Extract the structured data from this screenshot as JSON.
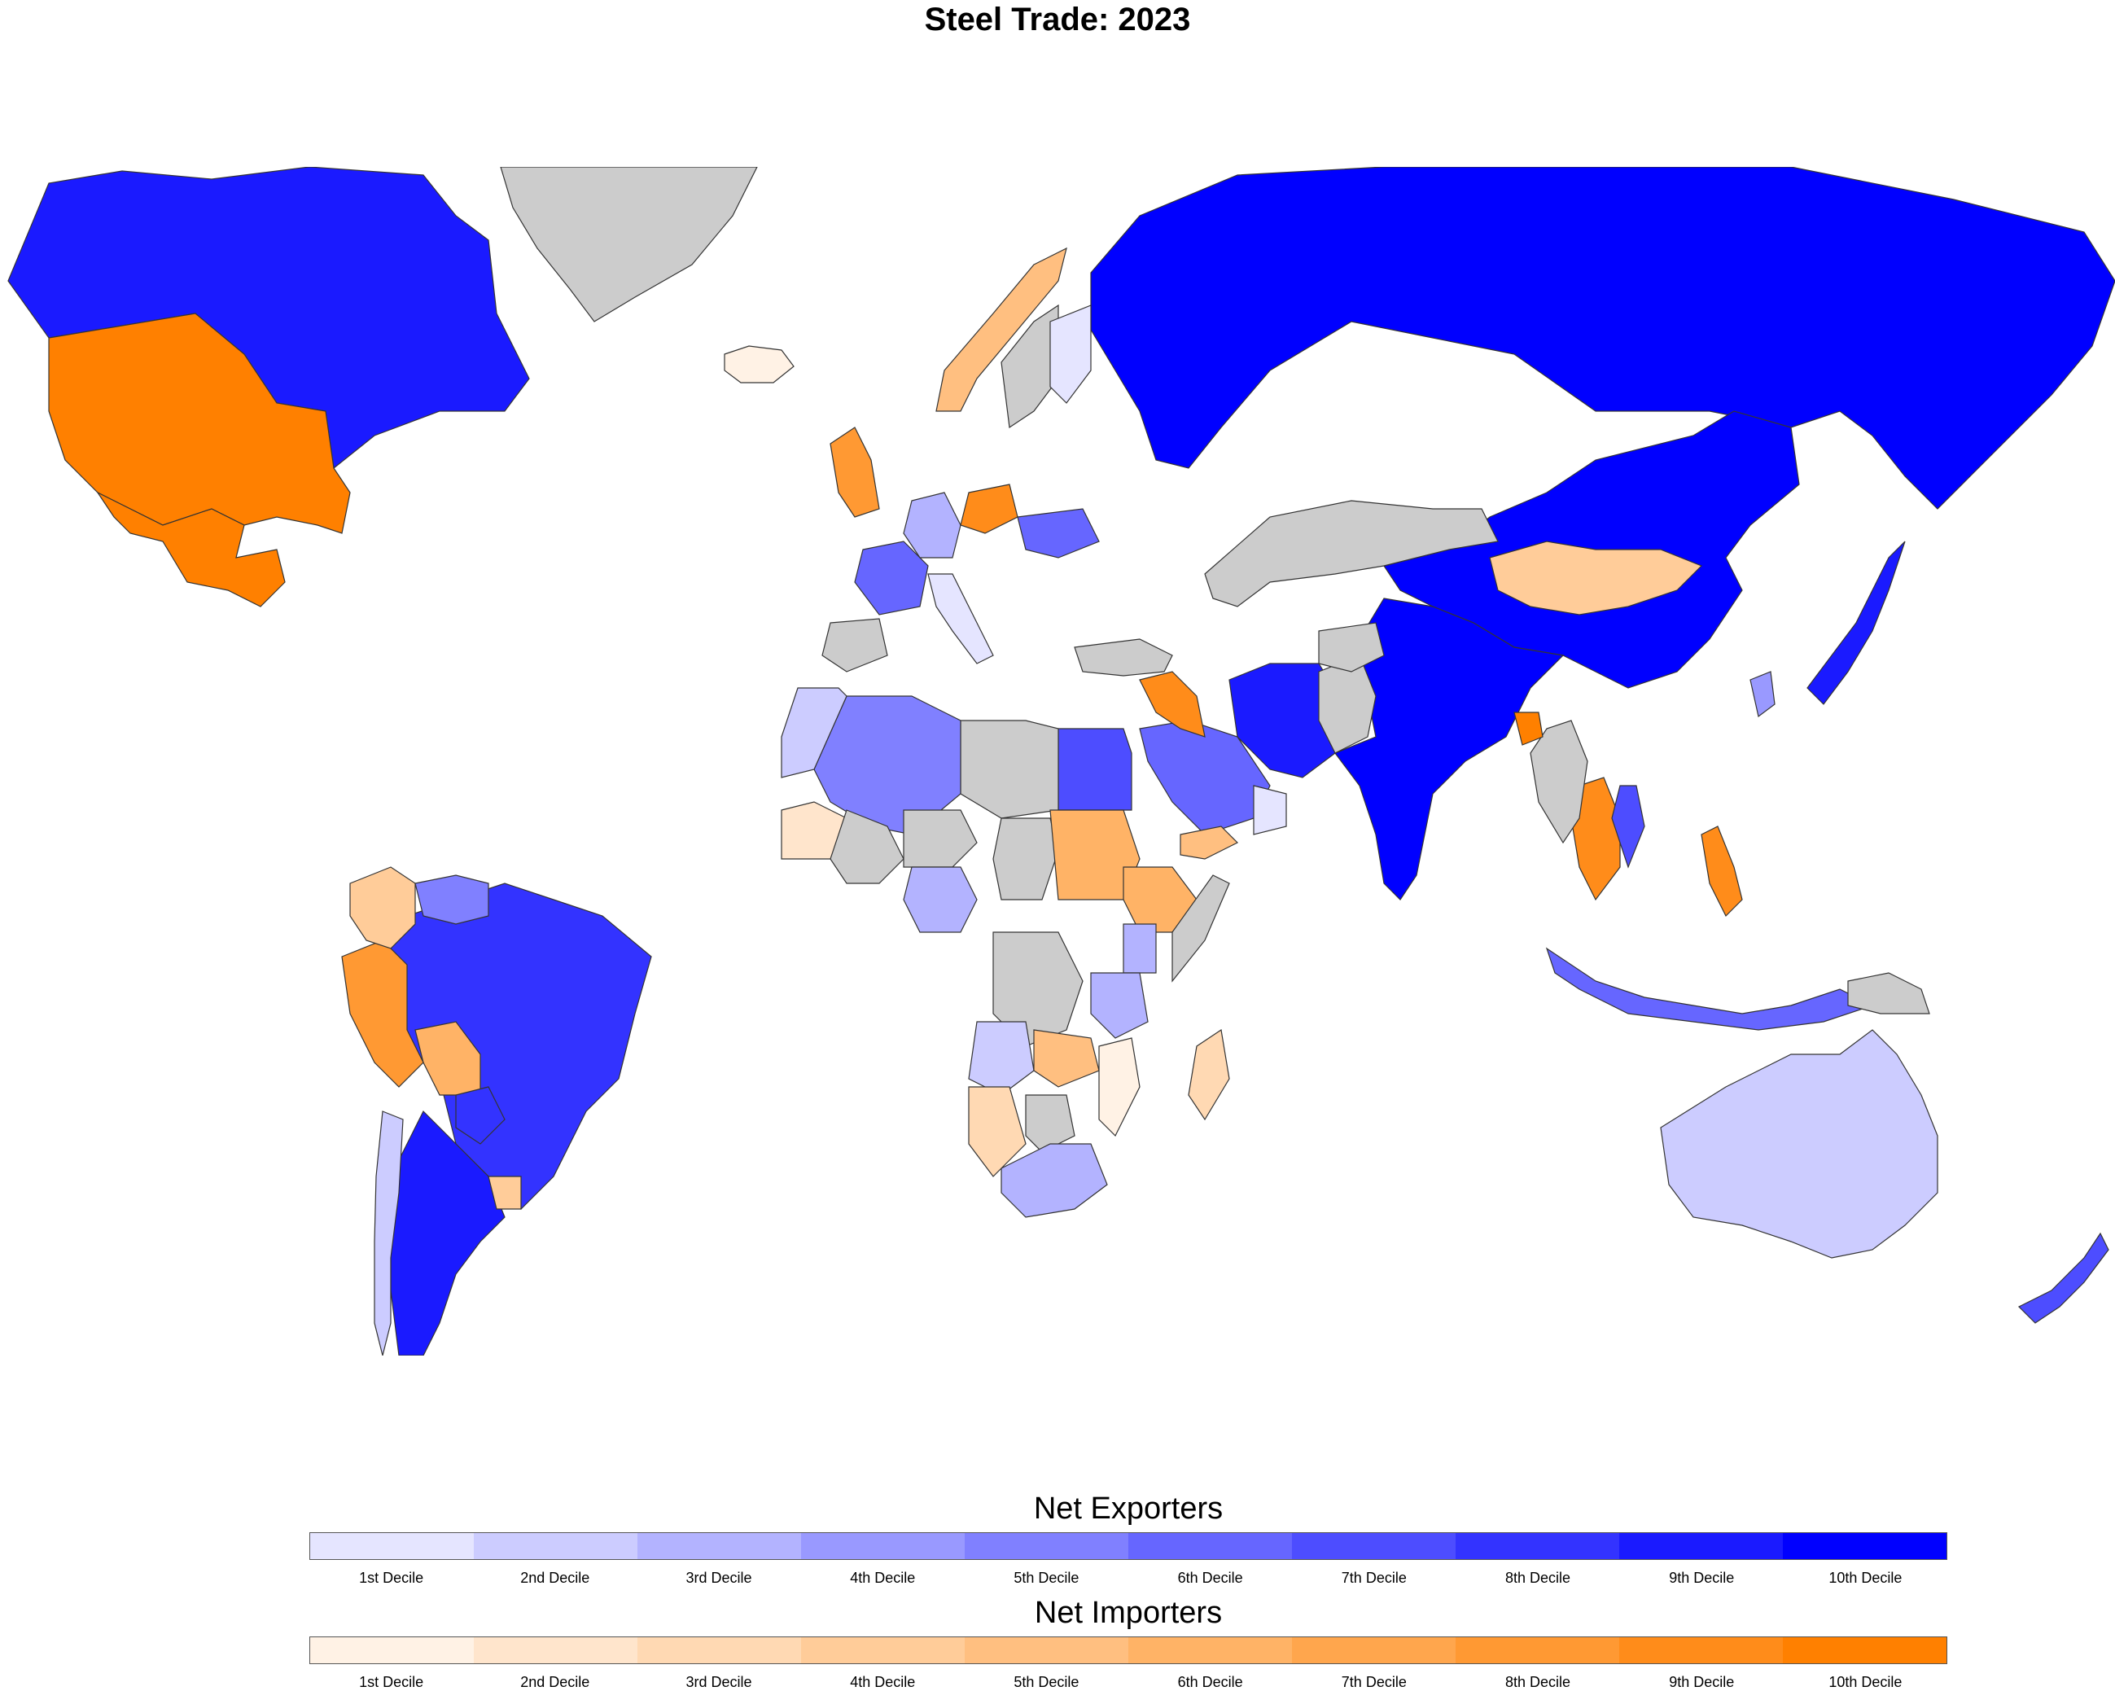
{
  "title": "Steel Trade: 2023",
  "legend": {
    "exporters": {
      "title": "Net Exporters",
      "colors": [
        "#e5e5ff",
        "#ccccff",
        "#b3b3ff",
        "#9999ff",
        "#8080ff",
        "#6666ff",
        "#4d4dff",
        "#3333ff",
        "#1a1aff",
        "#0000ff"
      ],
      "labels": [
        "1st Decile",
        "2nd Decile",
        "3rd Decile",
        "4th Decile",
        "5th Decile",
        "6th Decile",
        "7th Decile",
        "8th Decile",
        "9th Decile",
        "10th Decile"
      ]
    },
    "importers": {
      "title": "Net Importers",
      "colors": [
        "#fff2e5",
        "#ffe5cc",
        "#ffd9b3",
        "#ffcc99",
        "#ffbf80",
        "#ffb366",
        "#ffa64d",
        "#ff9933",
        "#ff8c1a",
        "#ff8000"
      ],
      "labels": [
        "1st Decile",
        "2nd Decile",
        "3rd Decile",
        "4th Decile",
        "5th Decile",
        "6th Decile",
        "7th Decile",
        "8th Decile",
        "9th Decile",
        "10th Decile"
      ]
    }
  },
  "countries": [
    {
      "name": "Canada",
      "category": "exporter",
      "decile": 9
    },
    {
      "name": "United States",
      "category": "importer",
      "decile": 10
    },
    {
      "name": "Mexico",
      "category": "importer",
      "decile": 10
    },
    {
      "name": "Greenland",
      "category": "no-data"
    },
    {
      "name": "Iceland",
      "category": "importer",
      "decile": 1
    },
    {
      "name": "Russia",
      "category": "exporter",
      "decile": 10
    },
    {
      "name": "China",
      "category": "exporter",
      "decile": 10
    },
    {
      "name": "India",
      "category": "exporter",
      "decile": 10
    },
    {
      "name": "Kazakhstan",
      "category": "no-data"
    },
    {
      "name": "Mongolia",
      "category": "importer",
      "decile": 4
    },
    {
      "name": "Japan",
      "category": "exporter",
      "decile": 9
    },
    {
      "name": "South Korea",
      "category": "exporter",
      "decile": 4
    },
    {
      "name": "Iran",
      "category": "exporter",
      "decile": 9
    },
    {
      "name": "Brazil",
      "category": "exporter",
      "decile": 8
    },
    {
      "name": "Argentina",
      "category": "exporter",
      "decile": 9
    },
    {
      "name": "Chile",
      "category": "exporter",
      "decile": 2
    },
    {
      "name": "Peru",
      "category": "importer",
      "decile": 8
    },
    {
      "name": "Colombia",
      "category": "importer",
      "decile": 4
    },
    {
      "name": "Venezuela",
      "category": "exporter",
      "decile": 5
    },
    {
      "name": "Bolivia",
      "category": "importer",
      "decile": 6
    },
    {
      "name": "Paraguay",
      "category": "exporter",
      "decile": 8
    },
    {
      "name": "Uruguay",
      "category": "importer",
      "decile": 4
    },
    {
      "name": "Australia",
      "category": "exporter",
      "decile": 2
    },
    {
      "name": "New Zealand",
      "category": "exporter",
      "decile": 7
    },
    {
      "name": "Indonesia",
      "category": "exporter",
      "decile": 6
    },
    {
      "name": "Papua New Guinea",
      "category": "no-data"
    },
    {
      "name": "Philippines",
      "category": "importer",
      "decile": 9
    },
    {
      "name": "Thailand",
      "category": "importer",
      "decile": 9
    },
    {
      "name": "Vietnam",
      "category": "exporter",
      "decile": 7
    },
    {
      "name": "Myanmar",
      "category": "no-data"
    },
    {
      "name": "Bangladesh",
      "category": "importer",
      "decile": 10
    },
    {
      "name": "Pakistan",
      "category": "no-data"
    },
    {
      "name": "Afghanistan",
      "category": "no-data"
    },
    {
      "name": "Saudi Arabia",
      "category": "exporter",
      "decile": 6
    },
    {
      "name": "Yemen",
      "category": "importer",
      "decile": 5
    },
    {
      "name": "Oman",
      "category": "exporter",
      "decile": 1
    },
    {
      "name": "Iraq",
      "category": "importer",
      "decile": 9
    },
    {
      "name": "Turkey",
      "category": "no-data"
    },
    {
      "name": "Egypt",
      "category": "exporter",
      "decile": 7
    },
    {
      "name": "Libya",
      "category": "no-data"
    },
    {
      "name": "Algeria",
      "category": "exporter",
      "decile": 5
    },
    {
      "name": "Morocco",
      "category": "exporter",
      "decile": 2
    },
    {
      "name": "Mauritania",
      "category": "importer",
      "decile": 2
    },
    {
      "name": "Mali",
      "category": "no-data"
    },
    {
      "name": "Niger",
      "category": "no-data"
    },
    {
      "name": "Chad",
      "category": "no-data"
    },
    {
      "name": "Sudan",
      "category": "importer",
      "decile": 6
    },
    {
      "name": "Ethiopia",
      "category": "importer",
      "decile": 6
    },
    {
      "name": "Somalia",
      "category": "no-data"
    },
    {
      "name": "Nigeria",
      "category": "exporter",
      "decile": 3
    },
    {
      "name": "DR Congo",
      "category": "no-data"
    },
    {
      "name": "Kenya",
      "category": "exporter",
      "decile": 3
    },
    {
      "name": "Tanzania",
      "category": "exporter",
      "decile": 3
    },
    {
      "name": "Angola",
      "category": "exporter",
      "decile": 2
    },
    {
      "name": "Zambia",
      "category": "importer",
      "decile": 5
    },
    {
      "name": "Mozambique",
      "category": "importer",
      "decile": 1
    },
    {
      "name": "Namibia",
      "category": "importer",
      "decile": 3
    },
    {
      "name": "Botswana",
      "category": "no-data"
    },
    {
      "name": "South Africa",
      "category": "exporter",
      "decile": 3
    },
    {
      "name": "Madagascar",
      "category": "importer",
      "decile": 3
    },
    {
      "name": "Norway",
      "category": "importer",
      "decile": 5
    },
    {
      "name": "Sweden",
      "category": "no-data"
    },
    {
      "name": "Finland",
      "category": "exporter",
      "decile": 1
    },
    {
      "name": "United Kingdom",
      "category": "importer",
      "decile": 8
    },
    {
      "name": "France",
      "category": "exporter",
      "decile": 6
    },
    {
      "name": "Spain",
      "category": "no-data"
    },
    {
      "name": "Germany",
      "category": "exporter",
      "decile": 3
    },
    {
      "name": "Poland",
      "category": "importer",
      "decile": 9
    },
    {
      "name": "Ukraine",
      "category": "exporter",
      "decile": 6
    },
    {
      "name": "Italy",
      "category": "exporter",
      "decile": 1
    }
  ]
}
